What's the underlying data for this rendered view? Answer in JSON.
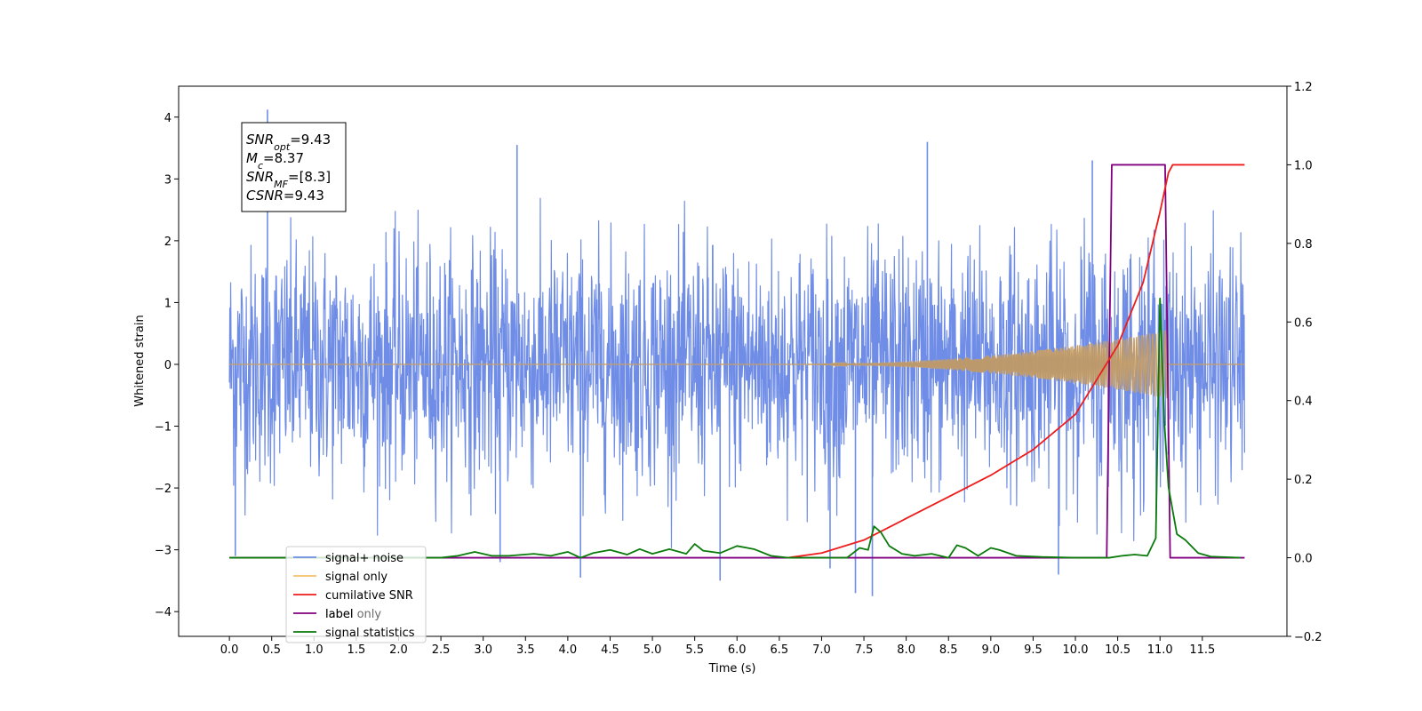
{
  "chart_data": {
    "type": "line",
    "xlabel": "Time (s)",
    "ylabel": "Whitened strain",
    "xlim": [
      -0.6,
      12.5
    ],
    "ylim": [
      -4.4,
      4.5
    ],
    "ylim_right": [
      -0.2,
      1.2
    ],
    "x_ticks": [
      0.0,
      0.5,
      1.0,
      1.5,
      2.0,
      2.5,
      3.0,
      3.5,
      4.0,
      4.5,
      5.0,
      5.5,
      6.0,
      6.5,
      7.0,
      7.5,
      8.0,
      8.5,
      9.0,
      9.5,
      10.0,
      10.5,
      11.0,
      11.5
    ],
    "x_tick_labels": [
      "0.0",
      "0.5",
      "1.0",
      "1.5",
      "2.0",
      "2.5",
      "3.0",
      "3.5",
      "4.0",
      "4.5",
      "5.0",
      "5.5",
      "6.0",
      "6.5",
      "7.0",
      "7.5",
      "8.0",
      "8.5",
      "9.0",
      "9.5",
      "10.0",
      "10.5",
      "11.0",
      "11.5"
    ],
    "y_ticks_left": [
      -4,
      -3,
      -2,
      -1,
      0,
      1,
      2,
      3,
      4
    ],
    "y_tick_labels_left": [
      "−4",
      "−3",
      "−2",
      "−1",
      "0",
      "1",
      "2",
      "3",
      "4"
    ],
    "y_ticks_right": [
      -0.2,
      0.0,
      0.2,
      0.4,
      0.6,
      0.8,
      1.0,
      1.2
    ],
    "y_tick_labels_right": [
      "−0.2",
      "0.0",
      "0.2",
      "0.4",
      "0.6",
      "0.8",
      "1.0",
      "1.2"
    ],
    "grid": false,
    "legend_placement": "lower-left",
    "annotation": {
      "lines": [
        {
          "sym": "SNR",
          "sub": "opt",
          "val": "=9.43"
        },
        {
          "sym": "M",
          "sub": "c",
          "val": "=8.37"
        },
        {
          "sym": "SNR",
          "sub": "MF",
          "val": "=[8.3]"
        },
        {
          "sym": "CSNR",
          "sub": "",
          "val": "=9.43"
        }
      ]
    },
    "series": [
      {
        "name": "signal+ noise",
        "axis": "left",
        "color": "#6f8de6",
        "description_x_range": [
          0.0,
          12.0
        ],
        "envelope_typical_max": 2.0,
        "envelope_typical_min": -2.0,
        "peaks": [
          [
            0.45,
            4.12
          ],
          [
            3.4,
            3.55
          ],
          [
            8.25,
            3.6
          ],
          [
            10.2,
            3.3
          ],
          [
            0.07,
            -3.1
          ],
          [
            4.15,
            -3.45
          ],
          [
            5.8,
            -3.5
          ],
          [
            7.4,
            -3.7
          ],
          [
            7.6,
            -3.75
          ],
          [
            9.8,
            -3.4
          ],
          [
            3.2,
            -3.2
          ],
          [
            7.1,
            -3.3
          ]
        ]
      },
      {
        "name": "signal only",
        "axis": "left",
        "color": "#f5c06a",
        "chirp_start": 6.5,
        "chirp_end": 11.07,
        "amplitude_at_end": 0.55,
        "x_end": 12.0
      },
      {
        "name": "cumilative SNR",
        "axis": "right",
        "color": "#ee1c1c",
        "x": [
          6.6,
          7.0,
          7.5,
          8.0,
          8.5,
          9.0,
          9.5,
          10.0,
          10.5,
          10.8,
          11.0,
          11.1,
          11.15,
          12.0
        ],
        "y": [
          0.0,
          0.012,
          0.045,
          0.1,
          0.155,
          0.21,
          0.275,
          0.365,
          0.54,
          0.7,
          0.88,
          0.98,
          1.0,
          1.0
        ]
      },
      {
        "name": "label",
        "axis": "right",
        "color": "#800080",
        "x": [
          0.0,
          10.37,
          10.43,
          11.06,
          11.12,
          12.0
        ],
        "y": [
          0.0,
          0.0,
          1.0,
          1.0,
          0.0,
          0.0
        ]
      },
      {
        "name": "signal statistics",
        "axis": "right",
        "color": "#0a7a0a",
        "x": [
          0.0,
          2.5,
          2.7,
          2.9,
          3.1,
          3.3,
          3.6,
          3.8,
          4.0,
          4.15,
          4.3,
          4.5,
          4.7,
          4.85,
          5.0,
          5.2,
          5.4,
          5.5,
          5.6,
          5.8,
          6.0,
          6.2,
          6.4,
          6.6,
          7.0,
          7.3,
          7.45,
          7.55,
          7.62,
          7.7,
          7.8,
          7.95,
          8.1,
          8.3,
          8.5,
          8.6,
          8.7,
          8.85,
          9.0,
          9.1,
          9.3,
          9.6,
          10.0,
          10.4,
          10.55,
          10.7,
          10.85,
          10.95,
          11.0,
          11.05,
          11.1,
          11.2,
          11.3,
          11.45,
          11.6,
          11.95
        ],
        "y": [
          0.0,
          0.0,
          0.005,
          0.015,
          0.005,
          0.005,
          0.01,
          0.005,
          0.015,
          0.0,
          0.012,
          0.02,
          0.008,
          0.022,
          0.01,
          0.022,
          0.01,
          0.035,
          0.018,
          0.012,
          0.03,
          0.022,
          0.005,
          0.0,
          0.0,
          0.0,
          0.025,
          0.02,
          0.08,
          0.065,
          0.03,
          0.01,
          0.005,
          0.01,
          0.0,
          0.032,
          0.025,
          0.005,
          0.025,
          0.02,
          0.005,
          0.002,
          0.0,
          0.0,
          0.005,
          0.008,
          0.005,
          0.05,
          0.66,
          0.35,
          0.18,
          0.06,
          0.045,
          0.012,
          0.003,
          0.0
        ]
      }
    ],
    "legend_entries": [
      "signal+ noise",
      "signal only",
      "cumilative SNR",
      "label",
      "signal statistics"
    ],
    "legend_ghost_entries": [
      "label only"
    ]
  }
}
